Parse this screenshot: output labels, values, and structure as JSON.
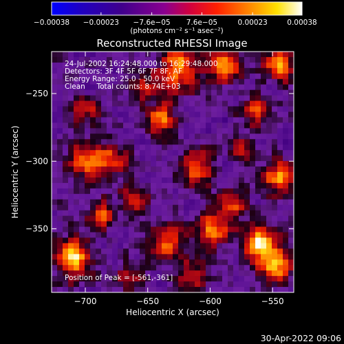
{
  "chart_data": {
    "type": "heatmap",
    "title": "Reconstructed RHESSI Image",
    "xlabel": "Heliocentric X (arcsec)",
    "ylabel": "Heliocentric Y (arcsec)",
    "xlim": [
      -727,
      -533
    ],
    "ylim": [
      -397,
      -219
    ],
    "xticks": [
      -700,
      -650,
      -600,
      -550
    ],
    "yticks": [
      -250,
      -300,
      -350
    ],
    "xtick_labels": [
      "−700",
      "−650",
      "−600",
      "−550"
    ],
    "ytick_labels": [
      "−250",
      "−300",
      "−350"
    ],
    "colorbar": {
      "ticks": [
        -0.00038,
        -0.00023,
        -7.6e-05,
        7.6e-05,
        0.00023,
        0.00038
      ],
      "tick_labels": [
        "−0.00038",
        "−0.00023",
        "−7.6e−05",
        "7.6e−05",
        "0.00023",
        "0.00038"
      ],
      "unit_label": "(photons cm⁻² s⁻¹ asec⁻²)",
      "range": [
        -0.00038,
        0.00038
      ],
      "colormap": [
        "#0000ff",
        "#400070",
        "#80008f",
        "#e00000",
        "#ff6000",
        "#ffd000",
        "#ffffff"
      ]
    },
    "annotations": [
      "24-Jul-2002 16:24:48.000 to 16:29:48.000",
      "Detectors: 3F 4F 5F 6F 7F 8F, AF",
      "Energy Range: 25.0 - 50.0 keV",
      "Clean     Total counts: 8.74E+03"
    ],
    "peak_label": "Position of Peak = [-561,-361]",
    "peak": {
      "x": -561,
      "y": -361
    },
    "blobs": [
      {
        "x": -561,
        "y": -361,
        "s": 9,
        "a": 1.0
      },
      {
        "x": -710,
        "y": -372,
        "s": 10,
        "a": 0.95
      },
      {
        "x": -625,
        "y": -232,
        "s": 12,
        "a": 0.75
      },
      {
        "x": -588,
        "y": -228,
        "s": 10,
        "a": 0.7
      },
      {
        "x": -545,
        "y": -228,
        "s": 9,
        "a": 0.8
      },
      {
        "x": -562,
        "y": -262,
        "s": 8,
        "a": 0.6
      },
      {
        "x": -640,
        "y": -268,
        "s": 8,
        "a": 0.75
      },
      {
        "x": -680,
        "y": -298,
        "s": 9,
        "a": 0.65
      },
      {
        "x": -700,
        "y": -300,
        "s": 9,
        "a": 0.7
      },
      {
        "x": -688,
        "y": -340,
        "s": 8,
        "a": 0.55
      },
      {
        "x": -612,
        "y": -305,
        "s": 9,
        "a": 0.7
      },
      {
        "x": -545,
        "y": -312,
        "s": 9,
        "a": 0.8
      },
      {
        "x": -580,
        "y": -330,
        "s": 8,
        "a": 0.55
      },
      {
        "x": -598,
        "y": -350,
        "s": 10,
        "a": 0.7
      },
      {
        "x": -635,
        "y": -360,
        "s": 10,
        "a": 0.6
      },
      {
        "x": -660,
        "y": -330,
        "s": 8,
        "a": 0.55
      },
      {
        "x": -548,
        "y": -378,
        "s": 9,
        "a": 0.85
      },
      {
        "x": -615,
        "y": -385,
        "s": 9,
        "a": 0.55
      },
      {
        "x": -665,
        "y": -385,
        "s": 8,
        "a": 0.5
      },
      {
        "x": -700,
        "y": -262,
        "s": 8,
        "a": 0.45
      },
      {
        "x": -575,
        "y": -290,
        "s": 7,
        "a": 0.5
      },
      {
        "x": -655,
        "y": -245,
        "s": 7,
        "a": 0.45
      }
    ]
  },
  "footer": {
    "date": "30-Apr-2022 09:06"
  }
}
